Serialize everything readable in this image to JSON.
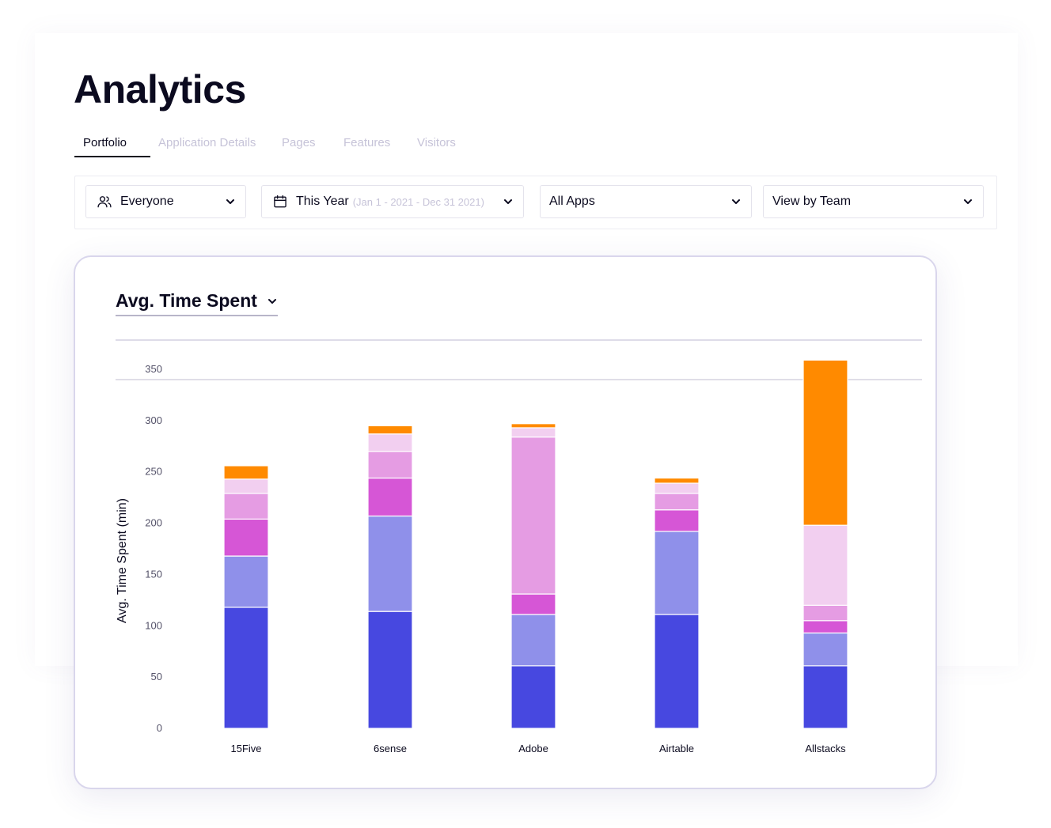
{
  "page": {
    "title": "Analytics"
  },
  "tabs": [
    {
      "label": "Portfolio",
      "active": true
    },
    {
      "label": "Application Details",
      "active": false
    },
    {
      "label": "Pages",
      "active": false
    },
    {
      "label": "Features",
      "active": false
    },
    {
      "label": "Visitors",
      "active": false
    }
  ],
  "filters": {
    "audience": {
      "label": "Everyone",
      "icon": "users-icon"
    },
    "date": {
      "label": "This Year",
      "range": "(Jan 1 - 2021 - Dec 31 2021)",
      "icon": "calendar-icon"
    },
    "apps": {
      "label": "All Apps"
    },
    "view": {
      "label": "View by Team"
    }
  },
  "card": {
    "metric_label": "Avg. Time Spent"
  },
  "colors": {
    "s1": "#4748e0",
    "s2": "#8f90ea",
    "s3": "#d656d6",
    "s4": "#e59ce3",
    "s5": "#f2cff0",
    "s6": "#ff8a00"
  },
  "chart_data": {
    "type": "bar",
    "stacked": true,
    "ylabel": "Avg. Time Spent (min)",
    "xlabel": "",
    "ylim": [
      0,
      350
    ],
    "yticks": [
      0,
      50,
      100,
      150,
      200,
      250,
      300,
      350
    ],
    "categories": [
      "15Five",
      "6sense",
      "Adobe",
      "Airtable",
      "Allstacks"
    ],
    "series": [
      {
        "values": [
          118,
          114,
          61,
          111,
          61
        ]
      },
      {
        "values": [
          50,
          93,
          50,
          81,
          32
        ]
      },
      {
        "values": [
          36,
          37,
          20,
          21,
          12
        ]
      },
      {
        "values": [
          25,
          26,
          153,
          16,
          15
        ]
      },
      {
        "values": [
          14,
          17,
          9,
          10,
          78
        ]
      },
      {
        "values": [
          13,
          8,
          4,
          5,
          161
        ]
      }
    ]
  }
}
